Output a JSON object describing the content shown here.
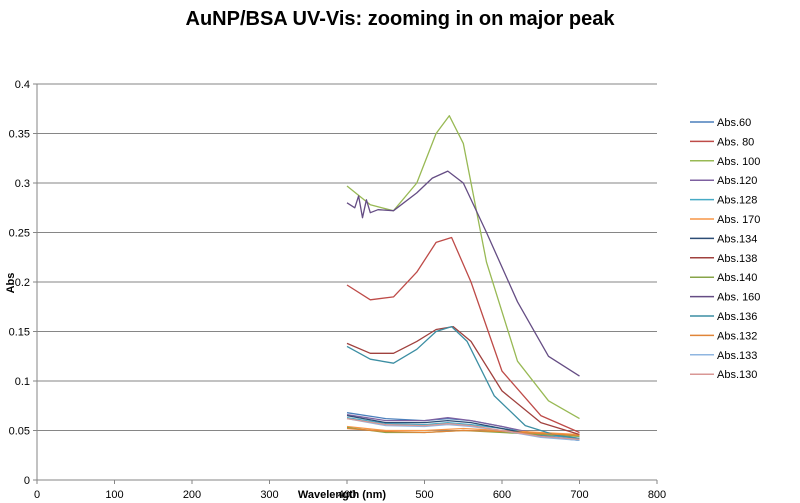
{
  "chart_data": {
    "type": "line",
    "title": "AuNP/BSA UV-Vis: zooming in on major peak",
    "xlabel": "Wavelength (nm)",
    "ylabel": "Abs",
    "xlim": [
      0,
      800
    ],
    "ylim": [
      0,
      0.4
    ],
    "xticks": [
      "0",
      "100",
      "200",
      "300",
      "400",
      "500",
      "600",
      "700",
      "800"
    ],
    "yticks": [
      "0",
      "0.05",
      "0.1",
      "0.15",
      "0.2",
      "0.25",
      "0.3",
      "0.35",
      "0.4"
    ],
    "grid": "horizontal",
    "legend_position": "right",
    "series": [
      {
        "name": "Abs.60",
        "color": "#4a7ebb",
        "x": [
          400,
          450,
          500,
          530,
          560,
          600,
          650,
          700
        ],
        "y": [
          0.068,
          0.062,
          0.06,
          0.062,
          0.06,
          0.054,
          0.045,
          0.04
        ]
      },
      {
        "name": "Abs. 80",
        "color": "#be4b48",
        "x": [
          400,
          430,
          460,
          490,
          515,
          535,
          560,
          600,
          650,
          700
        ],
        "y": [
          0.197,
          0.182,
          0.185,
          0.21,
          0.24,
          0.245,
          0.2,
          0.11,
          0.065,
          0.048
        ]
      },
      {
        "name": "Abs. 100",
        "color": "#98b954",
        "x": [
          400,
          430,
          460,
          490,
          515,
          532,
          550,
          580,
          620,
          660,
          700
        ],
        "y": [
          0.297,
          0.278,
          0.272,
          0.3,
          0.35,
          0.368,
          0.34,
          0.22,
          0.12,
          0.08,
          0.062
        ]
      },
      {
        "name": "Abs.120",
        "color": "#7d60a0",
        "x": [
          400,
          450,
          500,
          530,
          560,
          600,
          650,
          700
        ],
        "y": [
          0.066,
          0.06,
          0.06,
          0.063,
          0.06,
          0.054,
          0.046,
          0.042
        ]
      },
      {
        "name": "Abs.128",
        "color": "#46aac5",
        "x": [
          400,
          450,
          500,
          530,
          560,
          600,
          650,
          700
        ],
        "y": [
          0.063,
          0.057,
          0.056,
          0.058,
          0.056,
          0.052,
          0.046,
          0.042
        ]
      },
      {
        "name": "Abs. 170",
        "color": "#f79646",
        "x": [
          400,
          450,
          500,
          550,
          600,
          650,
          700
        ],
        "y": [
          0.054,
          0.05,
          0.05,
          0.052,
          0.05,
          0.048,
          0.046
        ]
      },
      {
        "name": "Abs.134",
        "color": "#2c4d75",
        "x": [
          400,
          450,
          500,
          530,
          560,
          600,
          650,
          700
        ],
        "y": [
          0.065,
          0.058,
          0.058,
          0.06,
          0.058,
          0.052,
          0.044,
          0.04
        ]
      },
      {
        "name": "Abs.138",
        "color": "#a0413e",
        "x": [
          400,
          430,
          460,
          490,
          515,
          537,
          560,
          600,
          650,
          700
        ],
        "y": [
          0.138,
          0.128,
          0.128,
          0.14,
          0.152,
          0.155,
          0.14,
          0.09,
          0.058,
          0.046
        ]
      },
      {
        "name": "Abs.140",
        "color": "#87a448",
        "x": [
          400,
          450,
          500,
          550,
          600,
          650,
          700
        ],
        "y": [
          0.053,
          0.048,
          0.048,
          0.05,
          0.048,
          0.046,
          0.044
        ]
      },
      {
        "name": "Abs. 160",
        "color": "#654d84",
        "x": [
          400,
          410,
          415,
          420,
          425,
          430,
          440,
          460,
          490,
          510,
          530,
          550,
          580,
          620,
          660,
          700
        ],
        "y": [
          0.28,
          0.275,
          0.287,
          0.265,
          0.283,
          0.27,
          0.273,
          0.272,
          0.29,
          0.305,
          0.312,
          0.3,
          0.25,
          0.18,
          0.125,
          0.105
        ]
      },
      {
        "name": "Abs.136",
        "color": "#3c8ea3",
        "x": [
          400,
          430,
          460,
          490,
          515,
          535,
          555,
          590,
          630,
          670,
          700
        ],
        "y": [
          0.135,
          0.122,
          0.118,
          0.132,
          0.15,
          0.155,
          0.14,
          0.085,
          0.055,
          0.045,
          0.042
        ]
      },
      {
        "name": "Abs.132",
        "color": "#e08538",
        "x": [
          400,
          450,
          500,
          550,
          600,
          650,
          700
        ],
        "y": [
          0.052,
          0.049,
          0.048,
          0.05,
          0.049,
          0.047,
          0.045
        ]
      },
      {
        "name": "Abs.133",
        "color": "#8fb6e0",
        "x": [
          400,
          450,
          500,
          530,
          560,
          600,
          650,
          700
        ],
        "y": [
          0.062,
          0.055,
          0.054,
          0.056,
          0.054,
          0.05,
          0.043,
          0.04
        ]
      },
      {
        "name": "Abs.130",
        "color": "#d99795",
        "x": [
          400,
          450,
          500,
          530,
          560,
          600,
          650,
          700
        ],
        "y": [
          0.062,
          0.056,
          0.055,
          0.057,
          0.055,
          0.05,
          0.044,
          0.041
        ]
      }
    ]
  }
}
